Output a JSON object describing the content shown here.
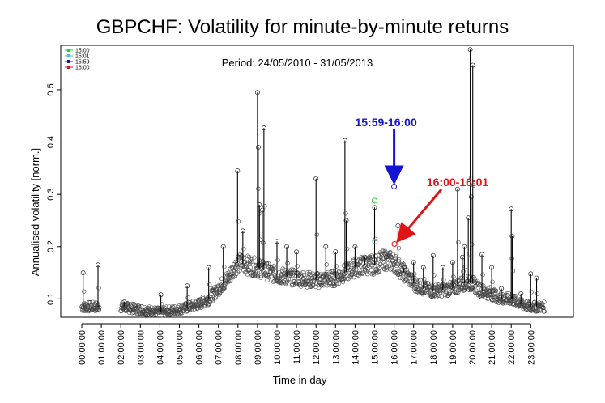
{
  "chart_data": {
    "type": "scatter",
    "title": "GBPCHF: Volatility for minute-by-minute returns",
    "subtitle": "Period: 24/05/2010 - 31/05/2013",
    "xlabel": "Time in day",
    "ylabel": "Annualised volatility [norm.]",
    "xlim": [
      0,
      24
    ],
    "ylim": [
      0.065,
      0.585
    ],
    "yticks": [
      0.1,
      0.2,
      0.3,
      0.4,
      0.5
    ],
    "ytick_labels": [
      "0.1",
      "0.2",
      "0.3",
      "0.4",
      "0.5"
    ],
    "xticks": [
      0,
      1,
      2,
      3,
      4,
      5,
      6,
      7,
      8,
      9,
      10,
      11,
      12,
      13,
      14,
      15,
      16,
      17,
      18,
      19,
      20,
      21,
      22,
      23
    ],
    "xtick_labels": [
      "00:00:00",
      "01:00:00",
      "02:00:00",
      "03:00:00",
      "04:00:00",
      "05:00:00",
      "06:00:00",
      "07:00:00",
      "08:00:00",
      "09:00:00",
      "10:00:00",
      "11:00:00",
      "12:00:00",
      "13:00:00",
      "14:00:00",
      "15:00:00",
      "16:00:00",
      "17:00:00",
      "18:00:00",
      "19:00:00",
      "20:00:00",
      "21:00:00",
      "22:00:00",
      "23:00:00"
    ],
    "gap": [
      0.9,
      2.0
    ],
    "x_end": 23.7,
    "baseline": {
      "x": [
        0,
        1,
        2,
        3,
        4,
        5,
        6,
        6.5,
        7,
        7.5,
        8,
        8.5,
        9,
        10,
        11,
        12,
        13,
        13.5,
        14,
        14.5,
        15,
        15.5,
        16,
        16.5,
        17,
        17.5,
        18,
        19,
        19.5,
        20,
        20.5,
        21,
        21.5,
        22,
        22.5,
        23,
        23.7
      ],
      "y": [
        0.085,
        0.085,
        0.085,
        0.08,
        0.075,
        0.08,
        0.09,
        0.1,
        0.12,
        0.14,
        0.17,
        0.165,
        0.16,
        0.145,
        0.14,
        0.135,
        0.14,
        0.15,
        0.16,
        0.165,
        0.165,
        0.175,
        0.17,
        0.15,
        0.13,
        0.12,
        0.115,
        0.12,
        0.13,
        0.13,
        0.115,
        0.11,
        0.1,
        0.1,
        0.09,
        0.085,
        0.085
      ]
    },
    "spikes": [
      {
        "x": 0.07,
        "y": 0.15
      },
      {
        "x": 0.83,
        "y": 0.165
      },
      {
        "x": 2.17,
        "y": 0.094
      },
      {
        "x": 4.05,
        "y": 0.108
      },
      {
        "x": 5.4,
        "y": 0.125
      },
      {
        "x": 6.5,
        "y": 0.16
      },
      {
        "x": 7.25,
        "y": 0.2
      },
      {
        "x": 7.98,
        "y": 0.345
      },
      {
        "x": 8.25,
        "y": 0.23
      },
      {
        "x": 9.0,
        "y": 0.495
      },
      {
        "x": 9.04,
        "y": 0.39
      },
      {
        "x": 9.1,
        "y": 0.28
      },
      {
        "x": 9.25,
        "y": 0.27
      },
      {
        "x": 9.33,
        "y": 0.427
      },
      {
        "x": 10.0,
        "y": 0.21
      },
      {
        "x": 10.5,
        "y": 0.2
      },
      {
        "x": 11.0,
        "y": 0.19
      },
      {
        "x": 12.0,
        "y": 0.33
      },
      {
        "x": 12.5,
        "y": 0.2
      },
      {
        "x": 13.0,
        "y": 0.19
      },
      {
        "x": 13.48,
        "y": 0.403
      },
      {
        "x": 13.55,
        "y": 0.25
      },
      {
        "x": 14.0,
        "y": 0.2
      },
      {
        "x": 14.5,
        "y": 0.18
      },
      {
        "x": 15.0,
        "y": 0.275
      },
      {
        "x": 15.6,
        "y": 0.18
      },
      {
        "x": 16.2,
        "y": 0.24
      },
      {
        "x": 16.5,
        "y": 0.16
      },
      {
        "x": 17.0,
        "y": 0.17
      },
      {
        "x": 17.5,
        "y": 0.16
      },
      {
        "x": 18.0,
        "y": 0.183
      },
      {
        "x": 18.5,
        "y": 0.16
      },
      {
        "x": 19.0,
        "y": 0.17
      },
      {
        "x": 19.25,
        "y": 0.31
      },
      {
        "x": 19.5,
        "y": 0.18
      },
      {
        "x": 19.6,
        "y": 0.2
      },
      {
        "x": 19.8,
        "y": 0.255
      },
      {
        "x": 19.9,
        "y": 0.577
      },
      {
        "x": 19.95,
        "y": 0.295
      },
      {
        "x": 20.03,
        "y": 0.547
      },
      {
        "x": 20.5,
        "y": 0.185
      },
      {
        "x": 21.0,
        "y": 0.16
      },
      {
        "x": 21.5,
        "y": 0.12
      },
      {
        "x": 22.0,
        "y": 0.272
      },
      {
        "x": 22.05,
        "y": 0.22
      },
      {
        "x": 22.5,
        "y": 0.11
      },
      {
        "x": 23.0,
        "y": 0.148
      },
      {
        "x": 23.3,
        "y": 0.14
      }
    ],
    "highlights": [
      {
        "time": "15:00",
        "x": 15.0,
        "y": 0.288,
        "color": "#2ecc2e"
      },
      {
        "time": "15:01",
        "x": 15.017,
        "y": 0.21,
        "color": "#33cccc"
      },
      {
        "time": "15:59",
        "x": 16.0,
        "y": 0.315,
        "color": "#1414d2"
      },
      {
        "time": "16:00",
        "x": 16.017,
        "y": 0.205,
        "color": "#e01414"
      }
    ],
    "legend": {
      "placement": "top-left",
      "items": [
        {
          "label": "15:00",
          "color": "#2ecc2e"
        },
        {
          "label": "15:01",
          "color": "#33cccc"
        },
        {
          "label": "15:59",
          "color": "#1414d2"
        },
        {
          "label": "16:00",
          "color": "#e01414"
        }
      ]
    },
    "annotations": [
      {
        "text": "15:59-16:00",
        "color": "#1414d2",
        "points_to": "15:59"
      },
      {
        "text": "16:00-16:01",
        "color": "#e01414",
        "points_to": "16:00"
      }
    ],
    "grid": false
  }
}
